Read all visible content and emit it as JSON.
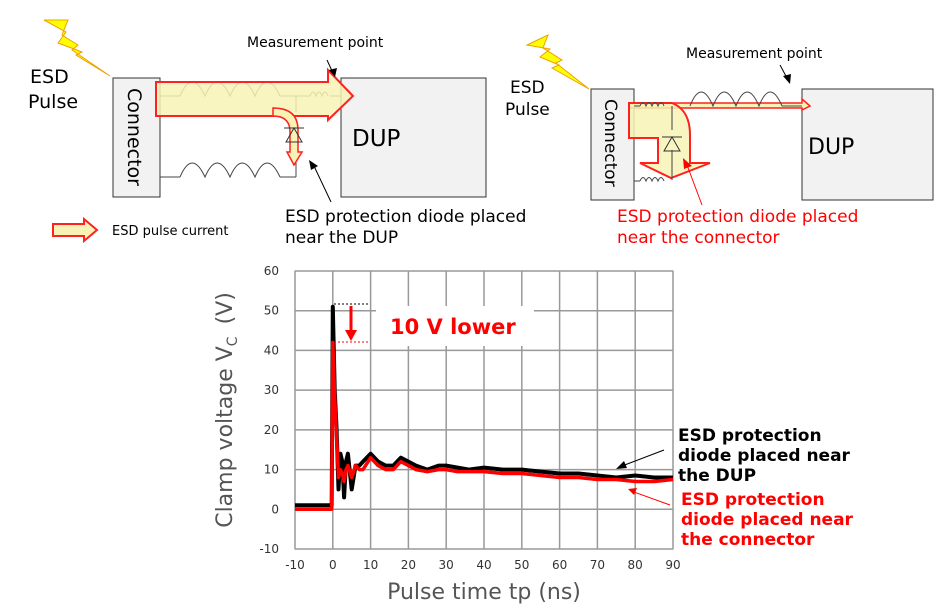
{
  "left_diagram": {
    "esd_pulse": [
      "ESD",
      "Pulse"
    ],
    "connector": "Connector",
    "dup": "DUP",
    "measurement_point": "Measurement point",
    "diode_label": [
      "ESD protection diode placed",
      "near the DUP"
    ],
    "legend": "ESD pulse current"
  },
  "right_diagram": {
    "esd_pulse": [
      "ESD",
      "Pulse"
    ],
    "connector": "Connector",
    "dup": "DUP",
    "measurement_point": "Measurement point",
    "diode_label": [
      "ESD protection diode placed",
      "near the connector"
    ]
  },
  "colors": {
    "red": "#ff0000",
    "yellow_fill": "#f7f3b5",
    "box_fill": "#f2f2f2",
    "lightning": "#ffff00"
  },
  "chart_data": {
    "type": "line",
    "xlabel": "Pulse time tp  (ns)",
    "ylabel_main": "Clamp voltage V",
    "ylabel_sub": "C",
    "ylabel_unit": "(V)",
    "xlim": [
      -10,
      90
    ],
    "ylim": [
      -10,
      60
    ],
    "xticks": [
      "-10",
      "0",
      "10",
      "20",
      "30",
      "40",
      "50",
      "60",
      "70",
      "80",
      "90"
    ],
    "yticks": [
      "-10",
      "0",
      "10",
      "20",
      "30",
      "40",
      "50",
      "60"
    ],
    "grid": true,
    "annotation": "10 V lower",
    "series": [
      {
        "name": "ESD protection diode placed near the DUP",
        "label_lines": [
          "ESD protection",
          "diode placed near",
          "the DUP"
        ],
        "color": "#000000",
        "x": [
          -10,
          -0.3,
          0,
          0.5,
          1,
          1.5,
          2,
          2.5,
          3,
          3.5,
          4,
          5,
          6,
          7,
          8,
          10,
          12,
          14,
          16,
          18,
          20,
          22,
          25,
          28,
          30,
          33,
          36,
          40,
          45,
          50,
          55,
          60,
          65,
          70,
          75,
          80,
          85,
          90
        ],
        "y": [
          1,
          1,
          51,
          30,
          20,
          5,
          14,
          12,
          3,
          12,
          14,
          5,
          11,
          11,
          12,
          14,
          12,
          11,
          11,
          13,
          12,
          11,
          10,
          11,
          11,
          10.5,
          10,
          10.5,
          10,
          10,
          9.5,
          9,
          9,
          8.5,
          8,
          8.5,
          8,
          8
        ]
      },
      {
        "name": "ESD protection diode placed near the connector",
        "label_lines": [
          "ESD protection",
          "diode placed near",
          "the connector"
        ],
        "color": "#ff0000",
        "x": [
          -10,
          -0.3,
          0,
          0.5,
          1,
          1.5,
          2,
          2.5,
          3,
          3.5,
          4,
          5,
          6,
          7,
          8,
          10,
          12,
          14,
          16,
          18,
          20,
          22,
          25,
          28,
          30,
          33,
          36,
          40,
          45,
          50,
          55,
          60,
          65,
          70,
          75,
          80,
          85,
          90
        ],
        "y": [
          0,
          0,
          42,
          28,
          18,
          8,
          10,
          9,
          7,
          10,
          11,
          8,
          11,
          10,
          10,
          13,
          11,
          10,
          10,
          12,
          11,
          10,
          9.5,
          10,
          10,
          9.5,
          9.5,
          9.5,
          9,
          9,
          8.5,
          8,
          8,
          7.5,
          7.5,
          7,
          7,
          7.5
        ]
      }
    ]
  }
}
